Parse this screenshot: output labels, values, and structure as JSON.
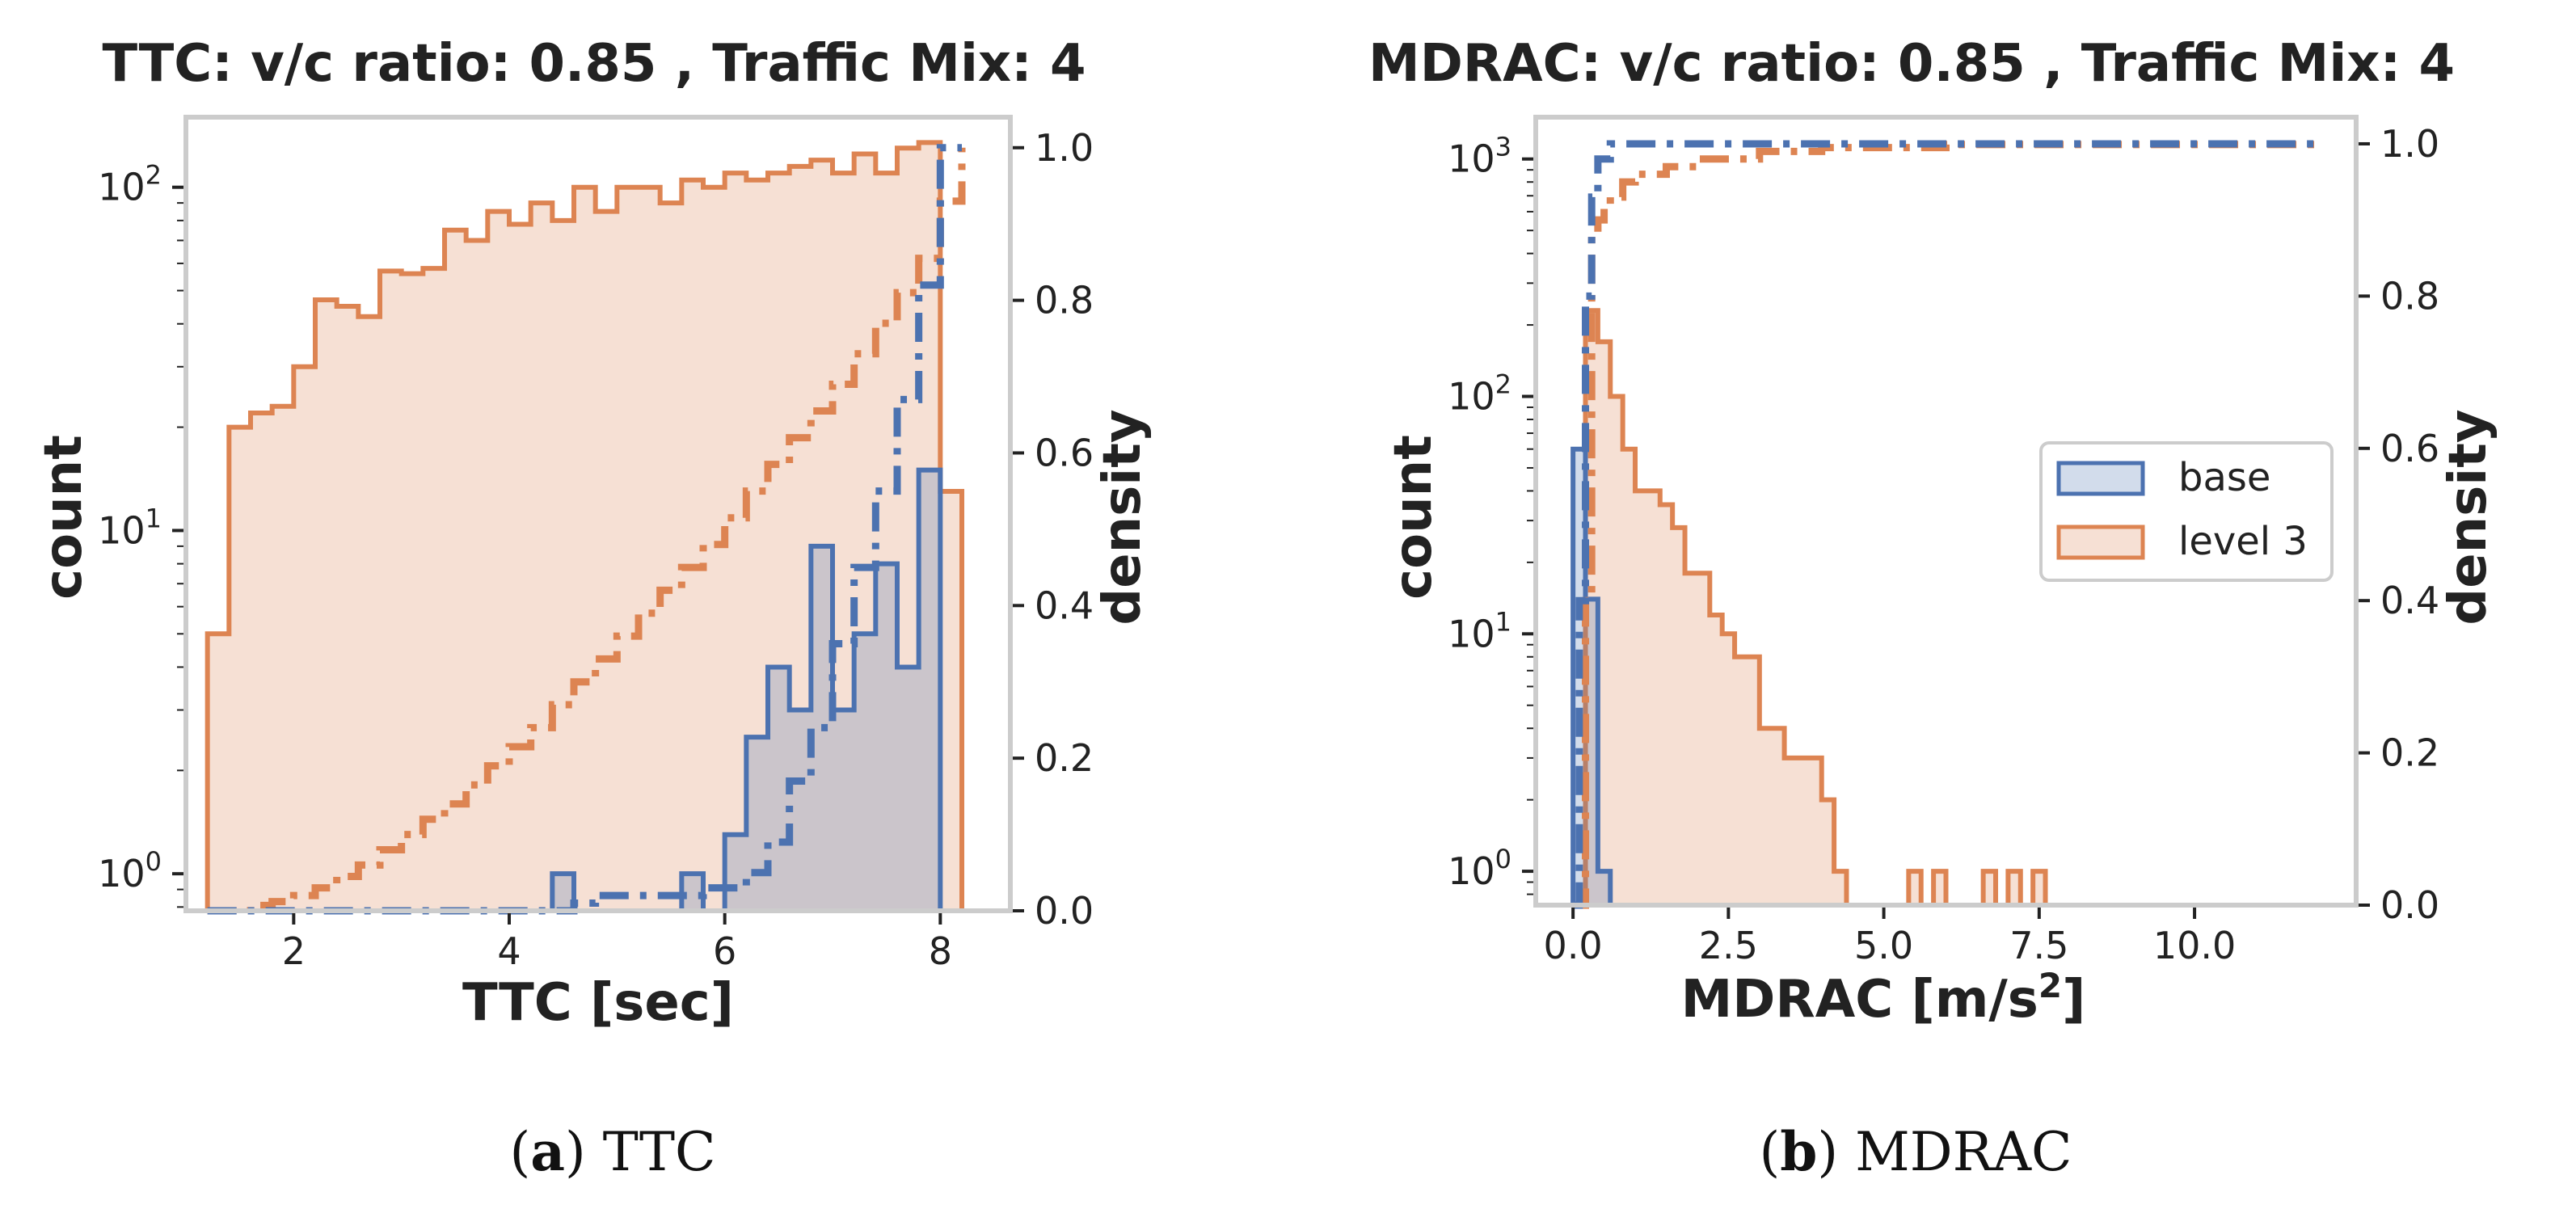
{
  "colors": {
    "base": "#4c72b0",
    "level3": "#dd8452",
    "frame": "#cccccc",
    "text": "#222222"
  },
  "chart_data": [
    {
      "type": "histogram",
      "title": "TTC: v/c ratio: 0.85 ,  Traffic Mix: 4",
      "xlabel": "TTC [sec]",
      "ylabel": "count",
      "ylabel_right": "density",
      "xlim": [
        1.0,
        8.65
      ],
      "yscale": "log",
      "ylim": [
        0.78,
        160
      ],
      "y2lim": [
        0.0,
        1.04
      ],
      "xticks": [
        2,
        4,
        6,
        8
      ],
      "yticks": [
        1,
        10,
        100
      ],
      "y2ticks": [
        0.0,
        0.2,
        0.4,
        0.6,
        0.8,
        1.0
      ],
      "bin_edges": [
        1.2,
        1.4,
        1.6,
        1.8,
        2.0,
        2.2,
        2.4,
        2.6,
        2.8,
        3.0,
        3.2,
        3.4,
        3.6,
        3.8,
        4.0,
        4.2,
        4.4,
        4.6,
        4.8,
        5.0,
        5.2,
        5.4,
        5.6,
        5.8,
        6.0,
        6.2,
        6.4,
        6.6,
        6.8,
        7.0,
        7.2,
        7.4,
        7.6,
        7.8,
        8.0,
        8.2
      ],
      "series": [
        {
          "name": "level 3",
          "counts": [
            5,
            20,
            22,
            23,
            30,
            47,
            45,
            42,
            57,
            56,
            58,
            75,
            70,
            85,
            78,
            90,
            80,
            100,
            85,
            100,
            100,
            90,
            105,
            100,
            110,
            105,
            110,
            115,
            120,
            110,
            125,
            110,
            130,
            135,
            13
          ],
          "cdf": [
            0.0,
            0.007,
            0.012,
            0.02,
            0.03,
            0.045,
            0.06,
            0.08,
            0.1,
            0.12,
            0.14,
            0.165,
            0.19,
            0.215,
            0.24,
            0.27,
            0.3,
            0.33,
            0.36,
            0.39,
            0.42,
            0.45,
            0.48,
            0.515,
            0.55,
            0.585,
            0.62,
            0.655,
            0.69,
            0.73,
            0.77,
            0.81,
            0.855,
            0.93,
            1.0
          ]
        },
        {
          "name": "base",
          "counts": [
            0,
            0,
            0,
            0,
            0,
            0,
            0,
            0,
            0,
            0,
            0,
            0,
            0,
            0,
            0,
            0,
            1,
            0,
            0,
            0,
            0,
            0,
            1,
            0,
            1.3,
            2.5,
            4,
            3,
            9,
            3,
            5,
            8,
            4,
            15,
            0
          ],
          "cdf": [
            0,
            0,
            0,
            0,
            0,
            0,
            0,
            0,
            0,
            0,
            0,
            0,
            0,
            0,
            0,
            0,
            0.01,
            0.02,
            0.02,
            0.02,
            0.02,
            0.02,
            0.03,
            0.03,
            0.05,
            0.09,
            0.17,
            0.24,
            0.35,
            0.45,
            0.55,
            0.67,
            0.82,
            1.0,
            1.0
          ]
        }
      ]
    },
    {
      "type": "histogram",
      "title": "MDRAC: v/c ratio: 0.85 , Traffic Mix: 4",
      "xlabel": "MDRAC [m/s",
      "xlabel_sup": "2",
      "xlabel_end": "]",
      "ylabel": "count",
      "ylabel_right": "density",
      "xlim": [
        -0.6,
        12.6
      ],
      "yscale": "log",
      "ylim": [
        0.72,
        1500
      ],
      "y2lim": [
        0.0,
        1.035
      ],
      "xticks": [
        0.0,
        2.5,
        5.0,
        7.5,
        10.0
      ],
      "xtick_labels": [
        "0.0",
        "2.5",
        "5.0",
        "7.5",
        "10.0"
      ],
      "yticks": [
        1,
        10,
        100,
        1000
      ],
      "y2ticks": [
        0.0,
        0.2,
        0.4,
        0.6,
        0.8,
        1.0
      ],
      "legend": {
        "location": "center-right",
        "entries": [
          "base",
          "level 3"
        ]
      },
      "series": [
        {
          "name": "level 3",
          "bin_width": 0.2,
          "start": 0.0,
          "counts": [
            0,
            230,
            170,
            100,
            60,
            40,
            40,
            35,
            28,
            18,
            18,
            12,
            10,
            8,
            8,
            4,
            4,
            3,
            3,
            3,
            2,
            1,
            0,
            0,
            0,
            0,
            0,
            1,
            0,
            1,
            0,
            0,
            0,
            1,
            0,
            1,
            0,
            1,
            0,
            0,
            0,
            0,
            0,
            0,
            0,
            0,
            0,
            0,
            0,
            0,
            0,
            0,
            0,
            0,
            0,
            0,
            0,
            0,
            0,
            0
          ],
          "cdf_x": [
            0.2,
            0.3,
            0.4,
            0.5,
            0.6,
            0.8,
            1.0,
            1.5,
            2.0,
            3.0,
            4.0,
            6.0,
            12.0
          ],
          "cdf": [
            0.4,
            0.88,
            0.9,
            0.92,
            0.93,
            0.95,
            0.96,
            0.97,
            0.98,
            0.99,
            0.995,
            0.999,
            1.0
          ]
        },
        {
          "name": "base",
          "bin_width": 0.2,
          "start": 0.0,
          "counts": [
            60,
            14,
            1
          ],
          "cdf_x": [
            0.1,
            0.2,
            0.3,
            0.4,
            0.6,
            12.0
          ],
          "cdf": [
            0.4,
            0.8,
            0.93,
            0.98,
            1.0,
            1.0
          ]
        }
      ]
    }
  ],
  "captions": [
    {
      "bold": "a",
      "text": " TTC",
      "open": "(",
      "close": ")"
    },
    {
      "bold": "b",
      "text": " MDRAC",
      "open": "(",
      "close": ")"
    }
  ]
}
